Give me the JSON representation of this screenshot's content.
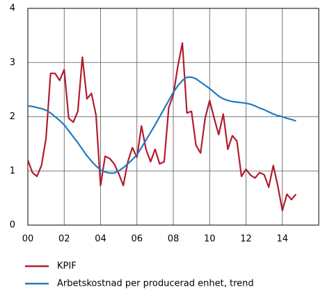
{
  "chart_data": {
    "type": "line",
    "x": [
      2000,
      2000.25,
      2000.5,
      2000.75,
      2001,
      2001.25,
      2001.5,
      2001.75,
      2002,
      2002.25,
      2002.5,
      2002.75,
      2003,
      2003.25,
      2003.5,
      2003.75,
      2004,
      2004.25,
      2004.5,
      2004.75,
      2005,
      2005.25,
      2005.5,
      2005.75,
      2006,
      2006.25,
      2006.5,
      2006.75,
      2007,
      2007.25,
      2007.5,
      2007.75,
      2008,
      2008.25,
      2008.5,
      2008.75,
      2009,
      2009.25,
      2009.5,
      2009.75,
      2010,
      2010.25,
      2010.5,
      2010.75,
      2011,
      2011.25,
      2011.5,
      2011.75,
      2012,
      2012.25,
      2012.5,
      2012.75,
      2013,
      2013.25,
      2013.5,
      2013.75,
      2014,
      2014.25,
      2014.5,
      2014.75
    ],
    "series": [
      {
        "name": "KPIF",
        "color": "#b01c2e",
        "values": [
          1.2,
          0.97,
          0.9,
          1.1,
          1.6,
          2.8,
          2.8,
          2.67,
          2.87,
          1.97,
          1.9,
          2.1,
          3.1,
          2.33,
          2.43,
          2.03,
          0.73,
          1.27,
          1.23,
          1.13,
          0.95,
          0.73,
          1.17,
          1.43,
          1.25,
          1.83,
          1.4,
          1.17,
          1.4,
          1.13,
          1.17,
          2.17,
          2.4,
          2.93,
          3.36,
          2.07,
          2.1,
          1.47,
          1.33,
          1.97,
          2.3,
          1.97,
          1.67,
          2.05,
          1.4,
          1.65,
          1.55,
          0.9,
          1.03,
          0.92,
          0.87,
          0.97,
          0.93,
          0.7,
          1.1,
          0.72,
          0.27,
          0.57,
          0.47,
          0.57
        ]
      },
      {
        "name": "Arbetskostnad per producerad enhet, trend",
        "color": "#1f7bc0",
        "values": [
          2.2,
          2.19,
          2.17,
          2.15,
          2.12,
          2.07,
          2.0,
          1.93,
          1.85,
          1.74,
          1.63,
          1.52,
          1.4,
          1.28,
          1.18,
          1.09,
          1.02,
          0.98,
          0.96,
          0.96,
          1.0,
          1.06,
          1.13,
          1.21,
          1.3,
          1.43,
          1.57,
          1.71,
          1.85,
          2.0,
          2.15,
          2.3,
          2.45,
          2.57,
          2.67,
          2.73,
          2.73,
          2.7,
          2.64,
          2.58,
          2.52,
          2.45,
          2.38,
          2.33,
          2.3,
          2.28,
          2.27,
          2.26,
          2.25,
          2.23,
          2.2,
          2.16,
          2.13,
          2.09,
          2.05,
          2.02,
          2.0,
          1.97,
          1.95,
          1.92
        ]
      }
    ],
    "xlim": [
      2000,
      2016
    ],
    "xticks": [
      {
        "value": 2000,
        "label": "00"
      },
      {
        "value": 2002,
        "label": "02"
      },
      {
        "value": 2004,
        "label": "04"
      },
      {
        "value": 2006,
        "label": "06"
      },
      {
        "value": 2008,
        "label": "08"
      },
      {
        "value": 2010,
        "label": "10"
      },
      {
        "value": 2012,
        "label": "12"
      },
      {
        "value": 2014,
        "label": "14"
      }
    ],
    "ylim": [
      0,
      4
    ],
    "yticks": [
      0,
      1,
      2,
      3,
      4
    ],
    "grid": true
  }
}
